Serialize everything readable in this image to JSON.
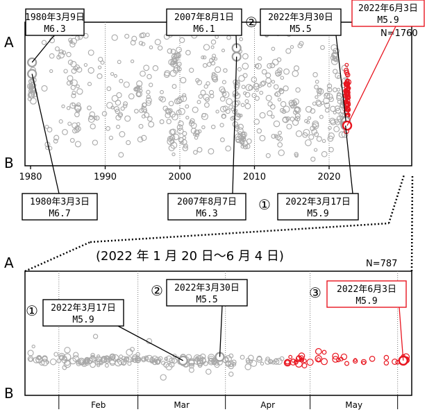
{
  "chart_data": [
    {
      "type": "scatter",
      "panel": "top",
      "axis_top_label": "A",
      "axis_bottom_label": "B",
      "count_label": "N=1760",
      "xlim": [
        1980,
        2023
      ],
      "x_ticks": [
        "1980",
        "1990",
        "2000",
        "2010",
        "2020"
      ],
      "x_tick_values": [
        1980,
        1990,
        2000,
        2010,
        2020
      ],
      "grid": "vertical dotted",
      "annotations": [
        {
          "date": "1980年3月9日",
          "mag": "M6.3",
          "x": 1980.2,
          "pos": 0.28,
          "color": "black"
        },
        {
          "date": "1980年3月3日",
          "mag": "M6.7",
          "x": 1980.2,
          "pos": 0.36,
          "color": "black"
        },
        {
          "date": "2007年8月1日",
          "mag": "M6.1",
          "x": 2007.6,
          "pos": 0.18,
          "color": "black"
        },
        {
          "date": "2007年8月7日",
          "mag": "M6.3",
          "x": 2007.6,
          "pos": 0.24,
          "color": "black"
        },
        {
          "marker": "②",
          "date": "2022年3月30日",
          "mag": "M5.5",
          "x": 2022.25,
          "pos": 0.69,
          "color": "black"
        },
        {
          "marker": "①",
          "date": "2022年3月17日",
          "mag": "M5.9",
          "x": 2022.2,
          "pos": 0.72,
          "color": "black"
        },
        {
          "date": "2022年6月3日",
          "mag": "M5.9",
          "x": 2022.42,
          "pos": 0.72,
          "color": "red"
        }
      ]
    },
    {
      "type": "scatter",
      "panel": "bottom",
      "title": "(2022 年 1 月 20 日～6 月 4 日)",
      "axis_top_label": "A",
      "axis_bottom_label": "B",
      "count_label": "N=787",
      "xlim": [
        "2022-01-20",
        "2022-06-06"
      ],
      "x_ticks": [
        "Feb",
        "Mar",
        "Apr",
        "May"
      ],
      "grid": "vertical dotted",
      "annotations": [
        {
          "marker": "①",
          "date": "2022年3月17日",
          "mag": "M5.9",
          "x": "2022-03-17",
          "pos": 0.72,
          "color": "black"
        },
        {
          "marker": "②",
          "date": "2022年3月30日",
          "mag": "M5.5",
          "x": "2022-03-30",
          "pos": 0.69,
          "color": "black"
        },
        {
          "marker": "③",
          "date": "2022年6月3日",
          "mag": "M5.9",
          "x": "2022-06-03",
          "pos": 0.72,
          "color": "red"
        }
      ]
    }
  ]
}
